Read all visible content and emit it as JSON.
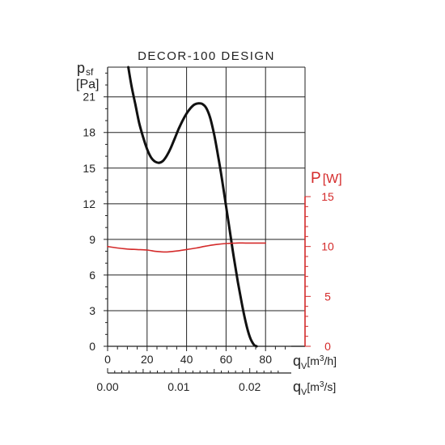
{
  "chart_data": {
    "type": "line",
    "title": "DECOR-100 DESIGN",
    "left_axis": {
      "label_main": "p",
      "label_sub": "sf",
      "unit": "[Pa]",
      "range": [
        0,
        23.5
      ],
      "ticks": [
        0,
        3,
        6,
        9,
        12,
        15,
        18,
        21
      ],
      "minor_step": 1
    },
    "right_axis": {
      "label_main": "P",
      "label_unit": "[W]",
      "range": [
        0,
        15
      ],
      "ticks": [
        0,
        5,
        10,
        15
      ],
      "minor_step": 1,
      "color": "#d42a2a"
    },
    "bottom_axis": {
      "label_main": "q",
      "label_sub": "V",
      "label_unit_pre": "[m",
      "label_unit_sup": "3",
      "label_unit_post": "/h]",
      "range": [
        0,
        100
      ],
      "ticks": [
        0,
        20,
        40,
        60,
        80
      ],
      "grid": [
        20,
        40,
        60,
        80,
        100
      ]
    },
    "secondary_bottom_axis": {
      "label_main": "q",
      "label_sub": "V",
      "label_unit_pre": "[m",
      "label_unit_sup": "3",
      "label_unit_post": "/s]",
      "ticks": [
        {
          "label": "0.00",
          "value": 0
        },
        {
          "label": "0.01",
          "value": 0.01
        },
        {
          "label": "0.02",
          "value": 0.02
        }
      ],
      "conversion": 3600
    },
    "grid": true,
    "series": [
      {
        "axis": "left",
        "color": "#111111",
        "points": [
          [
            10.5,
            23.5
          ],
          [
            12,
            22
          ],
          [
            14,
            20.4
          ],
          [
            16,
            18.8
          ],
          [
            18,
            17.6
          ],
          [
            20,
            16.6
          ],
          [
            22,
            15.9
          ],
          [
            24,
            15.55
          ],
          [
            26,
            15.45
          ],
          [
            28,
            15.6
          ],
          [
            30,
            16.05
          ],
          [
            32,
            16.7
          ],
          [
            34,
            17.5
          ],
          [
            36,
            18.3
          ],
          [
            38,
            19.0
          ],
          [
            40,
            19.6
          ],
          [
            42,
            20.05
          ],
          [
            44,
            20.35
          ],
          [
            46,
            20.45
          ],
          [
            48,
            20.4
          ],
          [
            50,
            20.05
          ],
          [
            52,
            19.2
          ],
          [
            54,
            17.8
          ],
          [
            56,
            16.0
          ],
          [
            58,
            14.0
          ],
          [
            60,
            11.8
          ],
          [
            62,
            9.6
          ],
          [
            64,
            7.4
          ],
          [
            66,
            5.4
          ],
          [
            68,
            3.6
          ],
          [
            70,
            2.0
          ],
          [
            72,
            0.8
          ],
          [
            74,
            0.15
          ],
          [
            75.5,
            0
          ]
        ]
      },
      {
        "axis": "right",
        "color": "#d42a2a",
        "points": [
          [
            0,
            10.0
          ],
          [
            5,
            9.85
          ],
          [
            10,
            9.75
          ],
          [
            15,
            9.7
          ],
          [
            20,
            9.65
          ],
          [
            25,
            9.5
          ],
          [
            30,
            9.45
          ],
          [
            35,
            9.55
          ],
          [
            40,
            9.7
          ],
          [
            45,
            9.85
          ],
          [
            50,
            10.05
          ],
          [
            55,
            10.2
          ],
          [
            60,
            10.3
          ],
          [
            65,
            10.35
          ],
          [
            70,
            10.35
          ],
          [
            75,
            10.35
          ],
          [
            80,
            10.35
          ]
        ]
      }
    ]
  }
}
